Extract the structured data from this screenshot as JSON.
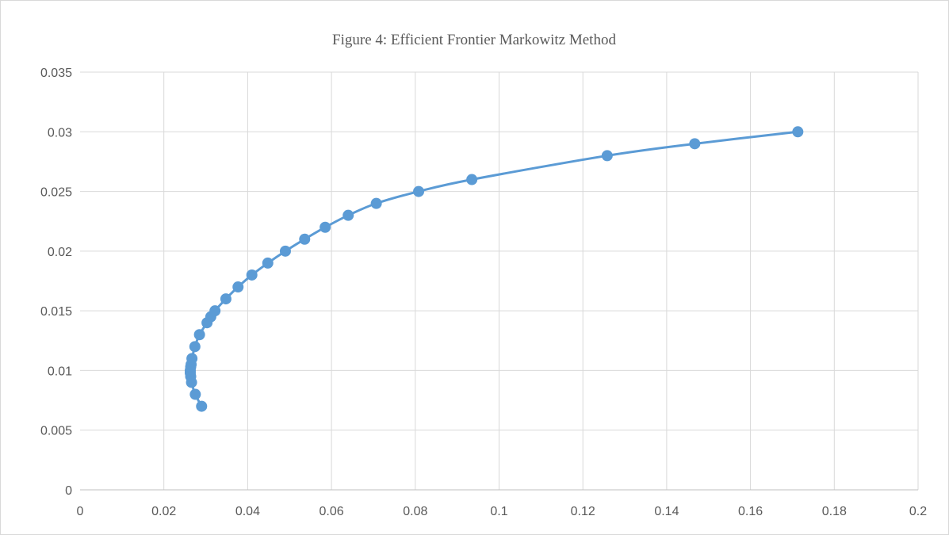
{
  "chart_data": {
    "type": "scatter",
    "title": "Figure 4: Efficient Frontier Markowitz Method",
    "xlabel": "",
    "ylabel": "",
    "xlim": [
      0,
      0.2
    ],
    "ylim": [
      0,
      0.035
    ],
    "x_ticks": [
      "0",
      "0.02",
      "0.04",
      "0.06",
      "0.08",
      "0.1",
      "0.12",
      "0.14",
      "0.16",
      "0.18",
      "0.2"
    ],
    "y_ticks": [
      "0",
      "0.005",
      "0.01",
      "0.015",
      "0.02",
      "0.025",
      "0.03",
      "0.035"
    ],
    "x_tick_values": [
      0,
      0.02,
      0.04,
      0.06,
      0.08,
      0.1,
      0.12,
      0.14,
      0.16,
      0.18,
      0.2
    ],
    "y_tick_values": [
      0,
      0.005,
      0.01,
      0.015,
      0.02,
      0.025,
      0.03,
      0.035
    ],
    "grid": true,
    "legend": "none",
    "marker_color": "#5b9bd5",
    "series": [
      {
        "points": [
          [
            0.029,
            0.007
          ],
          [
            0.0275,
            0.008
          ],
          [
            0.0266,
            0.009
          ],
          [
            0.0264,
            0.0095
          ],
          [
            0.0263,
            0.0098
          ],
          [
            0.0263,
            0.01
          ],
          [
            0.0264,
            0.0103
          ],
          [
            0.0265,
            0.0105
          ],
          [
            0.0267,
            0.011
          ],
          [
            0.0274,
            0.012
          ],
          [
            0.0285,
            0.013
          ],
          [
            0.0303,
            0.014
          ],
          [
            0.0312,
            0.0145
          ],
          [
            0.0322,
            0.015
          ],
          [
            0.0348,
            0.016
          ],
          [
            0.0377,
            0.017
          ],
          [
            0.041,
            0.018
          ],
          [
            0.0448,
            0.019
          ],
          [
            0.049,
            0.02
          ],
          [
            0.0536,
            0.021
          ],
          [
            0.0585,
            0.022
          ],
          [
            0.064,
            0.023
          ],
          [
            0.0707,
            0.024
          ],
          [
            0.0808,
            0.025
          ],
          [
            0.0935,
            0.026
          ],
          [
            0.1258,
            0.028
          ],
          [
            0.1467,
            0.029
          ],
          [
            0.1713,
            0.03
          ]
        ]
      }
    ]
  }
}
